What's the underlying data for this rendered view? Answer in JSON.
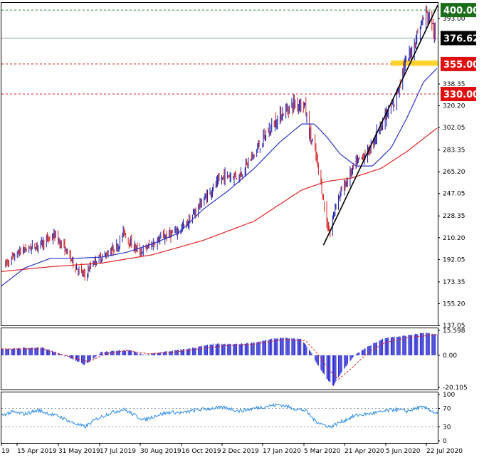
{
  "chart_data": [
    {
      "type": "candlestick",
      "panel": "price",
      "ylim": [
        137.05,
        406.0
      ],
      "y_ticks": [
        "393.00",
        "338.35",
        "320.20",
        "302.05",
        "283.35",
        "265.20",
        "247.05",
        "228.35",
        "210.20",
        "192.05",
        "173.35",
        "155.20",
        "137.05"
      ],
      "x_ticks": [
        "19",
        "15 Apr 2019",
        "31 May 2019",
        "17 Jul 2019",
        "30 Aug 2019",
        "16 Oct 2019",
        "2 Dec 2019",
        "17 Jan 2020",
        "5 Mar 2020",
        "21 Apr 2020",
        "5 Jun 2020",
        "22 Jul 2020"
      ],
      "x_range": [
        "2019-02-20",
        "2020-07-27"
      ],
      "colors": {
        "up": "#1a1aa8",
        "down": "#d42020",
        "ma_fast": "#2a35c8",
        "ma_slow": "#e02222"
      },
      "price_path": [
        [
          "2019-02-25",
          188
        ],
        [
          "2019-03-15",
          199
        ],
        [
          "2019-04-05",
          204
        ],
        [
          "2019-04-25",
          212
        ],
        [
          "2019-05-08",
          200
        ],
        [
          "2019-05-20",
          186
        ],
        [
          "2019-05-31",
          178
        ],
        [
          "2019-06-10",
          190
        ],
        [
          "2019-06-25",
          196
        ],
        [
          "2019-07-10",
          204
        ],
        [
          "2019-07-17",
          216
        ],
        [
          "2019-07-22",
          208
        ],
        [
          "2019-08-05",
          198
        ],
        [
          "2019-08-20",
          205
        ],
        [
          "2019-08-30",
          210
        ],
        [
          "2019-09-15",
          214
        ],
        [
          "2019-10-01",
          222
        ],
        [
          "2019-10-16",
          238
        ],
        [
          "2019-11-01",
          252
        ],
        [
          "2019-11-15",
          262
        ],
        [
          "2019-12-02",
          262
        ],
        [
          "2019-12-20",
          280
        ],
        [
          "2020-01-05",
          298
        ],
        [
          "2020-01-20",
          312
        ],
        [
          "2020-02-05",
          322
        ],
        [
          "2020-02-18",
          322
        ],
        [
          "2020-02-24",
          298
        ],
        [
          "2020-03-02",
          282
        ],
        [
          "2020-03-09",
          255
        ],
        [
          "2020-03-16",
          222
        ],
        [
          "2020-03-20",
          214
        ],
        [
          "2020-03-27",
          240
        ],
        [
          "2020-04-05",
          252
        ],
        [
          "2020-04-20",
          272
        ],
        [
          "2020-05-05",
          282
        ],
        [
          "2020-05-20",
          305
        ],
        [
          "2020-06-05",
          322
        ],
        [
          "2020-06-15",
          350
        ],
        [
          "2020-06-25",
          365
        ],
        [
          "2020-07-05",
          385
        ],
        [
          "2020-07-13",
          398
        ],
        [
          "2020-07-20",
          390
        ],
        [
          "2020-07-24",
          376.62
        ]
      ],
      "ma_fast_path": [
        [
          "2019-02-20",
          170
        ],
        [
          "2019-03-20",
          185
        ],
        [
          "2019-04-20",
          193
        ],
        [
          "2019-05-20",
          193
        ],
        [
          "2019-06-20",
          194
        ],
        [
          "2019-07-20",
          198
        ],
        [
          "2019-08-20",
          205
        ],
        [
          "2019-09-20",
          214
        ],
        [
          "2019-10-20",
          234
        ],
        [
          "2019-11-20",
          250
        ],
        [
          "2019-12-20",
          268
        ],
        [
          "2020-01-20",
          290
        ],
        [
          "2020-02-15",
          305
        ],
        [
          "2020-03-01",
          305
        ],
        [
          "2020-03-15",
          295
        ],
        [
          "2020-04-01",
          280
        ],
        [
          "2020-04-20",
          270
        ],
        [
          "2020-05-10",
          270
        ],
        [
          "2020-06-01",
          285
        ],
        [
          "2020-06-20",
          310
        ],
        [
          "2020-07-10",
          340
        ],
        [
          "2020-07-27",
          352
        ]
      ],
      "ma_slow_path": [
        [
          "2019-02-20",
          182
        ],
        [
          "2019-04-20",
          186
        ],
        [
          "2019-06-20",
          189
        ],
        [
          "2019-08-20",
          196
        ],
        [
          "2019-10-20",
          208
        ],
        [
          "2019-12-20",
          224
        ],
        [
          "2020-02-15",
          250
        ],
        [
          "2020-03-15",
          257
        ],
        [
          "2020-04-15",
          260
        ],
        [
          "2020-05-20",
          268
        ],
        [
          "2020-06-20",
          282
        ],
        [
          "2020-07-27",
          302
        ]
      ],
      "levels": [
        {
          "label": "400.00",
          "value": 400.0,
          "style": "dashed",
          "color": "#1e8b1e",
          "label_bg": "#1a6e1a"
        },
        {
          "label": "376.62",
          "value": 376.62,
          "style": "solid",
          "color": "#8a9ba6",
          "label_bg": "#000000"
        },
        {
          "label": "355.00",
          "value": 355.0,
          "style": "dashed",
          "color": "#d42020",
          "label_bg": "#e01010"
        },
        {
          "label": "330.00",
          "value": 330.0,
          "style": "dashed",
          "color": "#d42020",
          "label_bg": "#e01010"
        }
      ],
      "trendlines": [
        {
          "from": [
            "2020-03-12",
            204
          ],
          "to": [
            "2020-07-27",
            404
          ],
          "color": "#000000"
        }
      ],
      "highlight_zone": {
        "from": "2020-06-01",
        "to": "2020-07-27",
        "low": 353.5,
        "high": 358.0,
        "color": "#ffd21a"
      }
    },
    {
      "type": "histogram",
      "panel": "oscillator",
      "ylim": [
        -20.105,
        15.598
      ],
      "y_ticks": [
        "15.598",
        "0.00",
        "-20.105"
      ],
      "bar_color": "#2a2ad0",
      "signal_color": "#e02222",
      "hist_path": [
        [
          "2019-02-20",
          4
        ],
        [
          "2019-04-10",
          5
        ],
        [
          "2019-05-10",
          -1
        ],
        [
          "2019-05-31",
          -6
        ],
        [
          "2019-06-20",
          2
        ],
        [
          "2019-07-10",
          3
        ],
        [
          "2019-07-25",
          3
        ],
        [
          "2019-08-10",
          0
        ],
        [
          "2019-09-01",
          2
        ],
        [
          "2019-10-01",
          4
        ],
        [
          "2019-11-01",
          7
        ],
        [
          "2019-12-01",
          7
        ],
        [
          "2019-12-20",
          8
        ],
        [
          "2020-01-20",
          11
        ],
        [
          "2020-02-15",
          10
        ],
        [
          "2020-02-26",
          2
        ],
        [
          "2020-03-05",
          -6
        ],
        [
          "2020-03-18",
          -16
        ],
        [
          "2020-03-24",
          -19
        ],
        [
          "2020-04-05",
          -9
        ],
        [
          "2020-04-20",
          1
        ],
        [
          "2020-05-10",
          7
        ],
        [
          "2020-05-25",
          11
        ],
        [
          "2020-06-15",
          12
        ],
        [
          "2020-07-10",
          14
        ],
        [
          "2020-07-27",
          13
        ]
      ],
      "signal_path": [
        [
          "2019-02-20",
          4
        ],
        [
          "2019-04-10",
          4
        ],
        [
          "2019-05-20",
          -2
        ],
        [
          "2019-06-05",
          -4
        ],
        [
          "2019-06-25",
          1
        ],
        [
          "2019-07-20",
          3
        ],
        [
          "2019-08-15",
          1
        ],
        [
          "2019-09-15",
          2
        ],
        [
          "2019-10-15",
          4
        ],
        [
          "2019-11-15",
          6
        ],
        [
          "2019-12-20",
          7
        ],
        [
          "2020-01-25",
          10
        ],
        [
          "2020-02-20",
          9
        ],
        [
          "2020-03-05",
          1
        ],
        [
          "2020-03-20",
          -10
        ],
        [
          "2020-03-30",
          -15
        ],
        [
          "2020-04-15",
          -8
        ],
        [
          "2020-05-05",
          2
        ],
        [
          "2020-05-25",
          8
        ],
        [
          "2020-06-20",
          11
        ],
        [
          "2020-07-27",
          13
        ]
      ]
    },
    {
      "type": "line",
      "panel": "rsi",
      "ylim": [
        0,
        100
      ],
      "y_ticks": [
        "100",
        "70",
        "30",
        "0"
      ],
      "reference_levels": [
        70,
        30
      ],
      "line_color": "#2a8be8",
      "rsi_path": [
        [
          "2019-02-20",
          55
        ],
        [
          "2019-03-05",
          62
        ],
        [
          "2019-03-20",
          58
        ],
        [
          "2019-04-05",
          66
        ],
        [
          "2019-04-15",
          60
        ],
        [
          "2019-05-01",
          52
        ],
        [
          "2019-05-15",
          40
        ],
        [
          "2019-05-31",
          30
        ],
        [
          "2019-06-15",
          48
        ],
        [
          "2019-06-30",
          60
        ],
        [
          "2019-07-17",
          68
        ],
        [
          "2019-07-30",
          55
        ],
        [
          "2019-08-10",
          45
        ],
        [
          "2019-08-25",
          55
        ],
        [
          "2019-09-10",
          62
        ],
        [
          "2019-09-25",
          60
        ],
        [
          "2019-10-10",
          66
        ],
        [
          "2019-10-30",
          70
        ],
        [
          "2019-11-15",
          72
        ],
        [
          "2019-12-02",
          64
        ],
        [
          "2019-12-20",
          70
        ],
        [
          "2020-01-05",
          75
        ],
        [
          "2020-01-20",
          78
        ],
        [
          "2020-02-05",
          70
        ],
        [
          "2020-02-20",
          65
        ],
        [
          "2020-03-01",
          45
        ],
        [
          "2020-03-10",
          36
        ],
        [
          "2020-03-20",
          30
        ],
        [
          "2020-04-01",
          40
        ],
        [
          "2020-04-20",
          55
        ],
        [
          "2020-05-05",
          58
        ],
        [
          "2020-05-20",
          62
        ],
        [
          "2020-06-05",
          68
        ],
        [
          "2020-06-20",
          64
        ],
        [
          "2020-07-05",
          72
        ],
        [
          "2020-07-15",
          70
        ],
        [
          "2020-07-22",
          62
        ],
        [
          "2020-07-27",
          58
        ]
      ]
    }
  ]
}
